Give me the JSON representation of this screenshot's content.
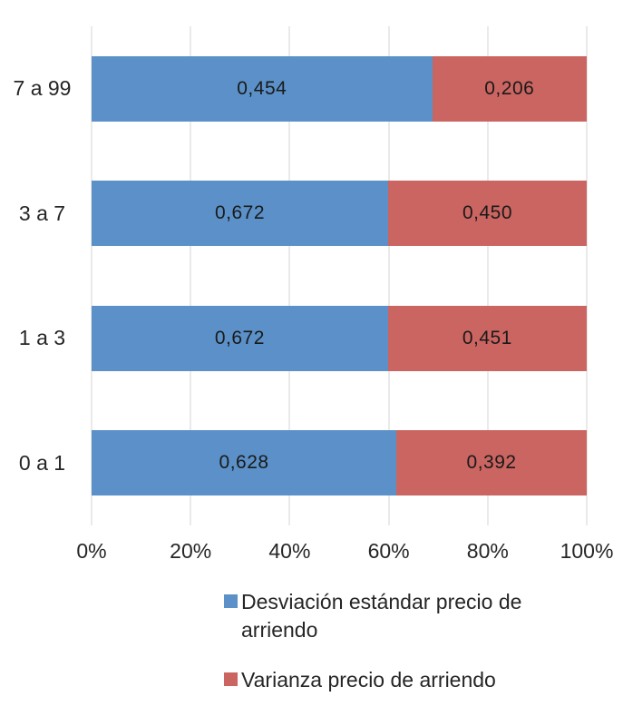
{
  "chart_data": {
    "type": "bar",
    "orientation": "horizontal",
    "stacked": true,
    "stacked_100_percent": true,
    "categories": [
      "7 a 99",
      "3 a 7",
      "1 a 3",
      "0 a 1"
    ],
    "series": [
      {
        "name": "Desviación estándar precio de arriendo",
        "color": "#5b91c8",
        "values": [
          0.454,
          0.672,
          0.672,
          0.628
        ],
        "labels": [
          "0,454",
          "0,672",
          "0,672",
          "0,628"
        ]
      },
      {
        "name": "Varianza precio de arriendo",
        "color": "#cb6561",
        "values": [
          0.206,
          0.45,
          0.451,
          0.392
        ],
        "labels": [
          "0,206",
          "0,450",
          "0,451",
          "0,392"
        ]
      }
    ],
    "x_ticks": [
      "0%",
      "20%",
      "40%",
      "60%",
      "80%",
      "100%"
    ],
    "xlim": [
      0,
      1
    ],
    "grid": "vertical-gridlines",
    "gridline_color": "#d6d6d6",
    "legend_position": "bottom",
    "title": "",
    "xlabel": "",
    "ylabel": ""
  },
  "legend": {
    "items": [
      {
        "label": "Desviación estándar precio de arriendo",
        "color": "#5b91c8"
      },
      {
        "label": "Varianza precio de arriendo",
        "color": "#cb6561"
      }
    ]
  }
}
